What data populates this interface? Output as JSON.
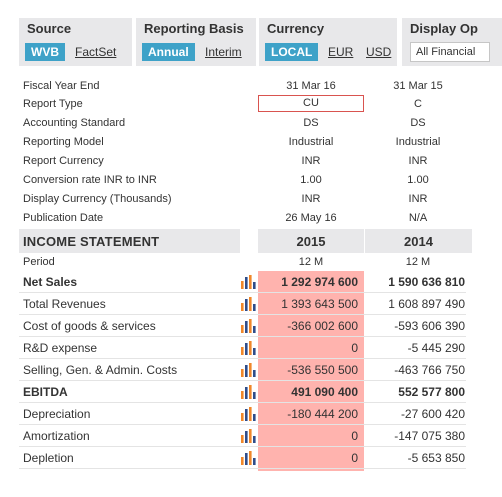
{
  "options": {
    "source": {
      "title": "Source",
      "active": "WVB",
      "other": "FactSet"
    },
    "basis": {
      "title": "Reporting Basis",
      "active": "Annual",
      "other": "Interim"
    },
    "currency": {
      "title": "Currency",
      "active": "LOCAL",
      "eur": "EUR",
      "usd": "USD"
    },
    "display": {
      "title": "Display Op",
      "select_value": "All Financial"
    }
  },
  "meta": {
    "rows": [
      {
        "label": "Fiscal Year End",
        "v1": "31 Mar 16",
        "v2": "31 Mar 15"
      },
      {
        "label": "Report Type",
        "v1": "CU",
        "v2": "C"
      },
      {
        "label": "Accounting Standard",
        "v1": "DS",
        "v2": "DS"
      },
      {
        "label": "Reporting Model",
        "v1": "Industrial",
        "v2": "Industrial"
      },
      {
        "label": "Report Currency",
        "v1": "INR",
        "v2": "INR"
      },
      {
        "label": "Conversion rate INR to INR",
        "v1": "1.00",
        "v2": "1.00"
      },
      {
        "label": "Display Currency (Thousands)",
        "v1": "INR",
        "v2": "INR"
      },
      {
        "label": "Publication Date",
        "v1": "26 May 16",
        "v2": "N/A"
      }
    ]
  },
  "income": {
    "title": "INCOME STATEMENT",
    "year1": "2015",
    "year2": "2014",
    "period": {
      "label": "Period",
      "v1": "12 M",
      "v2": "12 M"
    },
    "rows": [
      {
        "label": "Net Sales",
        "v1": "1 292 974 600",
        "v2": "1 590 636 810",
        "bold": true
      },
      {
        "label": "Total Revenues",
        "v1": "1 393 643 500",
        "v2": "1 608 897 490",
        "bold": false
      },
      {
        "label": "Cost of goods & services",
        "v1": "-366 002 600",
        "v2": "-593 606 390",
        "bold": false
      },
      {
        "label": "R&D expense",
        "v1": "0",
        "v2": "-5 445 290",
        "bold": false
      },
      {
        "label": "Selling, Gen. & Admin. Costs",
        "v1": "-536 550 500",
        "v2": "-463 766 750",
        "bold": false
      },
      {
        "label": "EBITDA",
        "v1": "491 090 400",
        "v2": "552 577 800",
        "bold": true
      },
      {
        "label": "Depreciation",
        "v1": "-180 444 200",
        "v2": "-27 600 420",
        "bold": false
      },
      {
        "label": "Amortization",
        "v1": "0",
        "v2": "-147 075 380",
        "bold": false
      },
      {
        "label": "Depletion",
        "v1": "0",
        "v2": "-5 653 850",
        "bold": false
      }
    ]
  },
  "colors": {
    "accent": "#3ea2c8",
    "header_bg": "#e8e8ea",
    "highlight": "#ffb3ae",
    "icon_orange": "#f0872a",
    "icon_blue": "#2f4d8a"
  },
  "icons": {
    "row_chart": "bar-chart-icon"
  }
}
